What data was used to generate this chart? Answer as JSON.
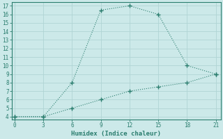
{
  "xlabel": "Humidex (Indice chaleur)",
  "line1_x": [
    0,
    3,
    6,
    9,
    12,
    15,
    18,
    21
  ],
  "line1_y": [
    4,
    4,
    8,
    16.5,
    17,
    16,
    10,
    9
  ],
  "line2_x": [
    0,
    3,
    6,
    9,
    12,
    15,
    18,
    21
  ],
  "line2_y": [
    4,
    4,
    5,
    6,
    7,
    7.5,
    8,
    9
  ],
  "line_color": "#2a7d6e",
  "bg_color": "#cce9e9",
  "grid_color": "#b0d4d4",
  "xlim": [
    0,
    21
  ],
  "ylim": [
    4,
    17
  ],
  "xticks": [
    0,
    3,
    6,
    9,
    12,
    15,
    18,
    21
  ],
  "yticks": [
    4,
    5,
    6,
    7,
    8,
    9,
    10,
    11,
    12,
    13,
    14,
    15,
    16,
    17
  ],
  "tick_color": "#2a7d6e",
  "spine_color": "#2a7d6e"
}
